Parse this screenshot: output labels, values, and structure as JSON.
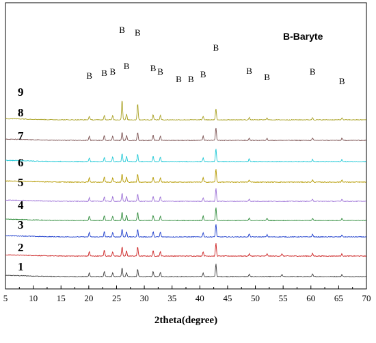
{
  "chart_data": {
    "type": "line",
    "xlabel": "2theta(degree)",
    "ylabel": "",
    "xlim": [
      5,
      70
    ],
    "x_ticks": [
      "5",
      "10",
      "15",
      "20",
      "25",
      "30",
      "35",
      "40",
      "45",
      "50",
      "55",
      "60",
      "65",
      "70"
    ],
    "grid": false,
    "legend_text": "B-Baryte",
    "peak_marker": "B",
    "peak_positions": [
      20.1,
      22.8,
      24.3,
      26.0,
      26.8,
      28.8,
      31.6,
      32.9,
      36.2,
      38.4,
      40.6,
      42.9,
      48.9,
      52.1,
      60.3,
      65.6
    ],
    "series": [
      {
        "name": "1",
        "color": "#404040",
        "values": [
          [
            20.1,
            0.1
          ],
          [
            22.8,
            0.14
          ],
          [
            24.3,
            0.1
          ],
          [
            26.0,
            0.25
          ],
          [
            26.8,
            0.12
          ],
          [
            28.8,
            0.2
          ],
          [
            31.6,
            0.14
          ],
          [
            32.9,
            0.12
          ],
          [
            40.6,
            0.1
          ],
          [
            42.9,
            0.35
          ],
          [
            48.9,
            0.06
          ],
          [
            54.8,
            0.06
          ],
          [
            60.3,
            0.07
          ],
          [
            65.6,
            0.06
          ]
        ]
      },
      {
        "name": "2",
        "color": "#cc2222",
        "values": [
          [
            20.1,
            0.12
          ],
          [
            22.8,
            0.16
          ],
          [
            24.3,
            0.12
          ],
          [
            26.0,
            0.25
          ],
          [
            26.8,
            0.14
          ],
          [
            28.8,
            0.25
          ],
          [
            31.6,
            0.14
          ],
          [
            32.9,
            0.12
          ],
          [
            40.6,
            0.12
          ],
          [
            42.9,
            0.35
          ],
          [
            48.9,
            0.06
          ],
          [
            52.1,
            0.06
          ],
          [
            54.8,
            0.06
          ],
          [
            60.3,
            0.07
          ],
          [
            65.6,
            0.06
          ]
        ]
      },
      {
        "name": "3",
        "color": "#1f3fcc",
        "values": [
          [
            20.1,
            0.12
          ],
          [
            22.8,
            0.14
          ],
          [
            24.3,
            0.12
          ],
          [
            26.0,
            0.22
          ],
          [
            26.8,
            0.14
          ],
          [
            28.8,
            0.2
          ],
          [
            31.6,
            0.14
          ],
          [
            32.9,
            0.13
          ],
          [
            40.6,
            0.12
          ],
          [
            42.9,
            0.35
          ],
          [
            48.9,
            0.08
          ],
          [
            52.1,
            0.06
          ],
          [
            60.3,
            0.07
          ],
          [
            65.6,
            0.06
          ]
        ]
      },
      {
        "name": "4",
        "color": "#2e8b3a",
        "values": [
          [
            20.1,
            0.12
          ],
          [
            22.8,
            0.14
          ],
          [
            24.3,
            0.12
          ],
          [
            26.0,
            0.22
          ],
          [
            26.8,
            0.14
          ],
          [
            28.8,
            0.22
          ],
          [
            31.6,
            0.14
          ],
          [
            32.9,
            0.12
          ],
          [
            40.6,
            0.12
          ],
          [
            42.9,
            0.35
          ],
          [
            48.9,
            0.06
          ],
          [
            52.1,
            0.06
          ],
          [
            60.3,
            0.06
          ],
          [
            65.6,
            0.06
          ]
        ]
      },
      {
        "name": "5",
        "color": "#9b6fd6",
        "values": [
          [
            20.1,
            0.1
          ],
          [
            22.8,
            0.12
          ],
          [
            24.3,
            0.12
          ],
          [
            26.0,
            0.22
          ],
          [
            26.8,
            0.14
          ],
          [
            28.8,
            0.2
          ],
          [
            31.6,
            0.14
          ],
          [
            32.9,
            0.12
          ],
          [
            40.6,
            0.1
          ],
          [
            42.9,
            0.35
          ],
          [
            48.9,
            0.06
          ],
          [
            60.3,
            0.06
          ],
          [
            65.6,
            0.06
          ]
        ]
      },
      {
        "name": "6",
        "color": "#b59a00",
        "values": [
          [
            20.1,
            0.12
          ],
          [
            22.8,
            0.14
          ],
          [
            24.3,
            0.12
          ],
          [
            26.0,
            0.22
          ],
          [
            26.8,
            0.14
          ],
          [
            28.8,
            0.22
          ],
          [
            31.6,
            0.14
          ],
          [
            32.9,
            0.12
          ],
          [
            40.6,
            0.12
          ],
          [
            42.9,
            0.35
          ],
          [
            48.9,
            0.06
          ],
          [
            60.3,
            0.06
          ],
          [
            65.6,
            0.06
          ]
        ]
      },
      {
        "name": "7",
        "color": "#1ec8d6",
        "values": [
          [
            20.1,
            0.1
          ],
          [
            22.8,
            0.12
          ],
          [
            24.3,
            0.12
          ],
          [
            26.0,
            0.22
          ],
          [
            26.8,
            0.14
          ],
          [
            28.8,
            0.2
          ],
          [
            31.6,
            0.14
          ],
          [
            32.9,
            0.12
          ],
          [
            40.6,
            0.1
          ],
          [
            42.9,
            0.35
          ],
          [
            48.9,
            0.08
          ],
          [
            60.3,
            0.06
          ],
          [
            65.6,
            0.06
          ]
        ]
      },
      {
        "name": "8",
        "color": "#7a5050",
        "values": [
          [
            20.1,
            0.12
          ],
          [
            22.8,
            0.14
          ],
          [
            24.3,
            0.12
          ],
          [
            26.0,
            0.22
          ],
          [
            26.8,
            0.14
          ],
          [
            28.8,
            0.22
          ],
          [
            31.6,
            0.14
          ],
          [
            32.9,
            0.12
          ],
          [
            40.6,
            0.12
          ],
          [
            42.9,
            0.35
          ],
          [
            48.9,
            0.06
          ],
          [
            52.1,
            0.06
          ],
          [
            60.3,
            0.06
          ],
          [
            65.6,
            0.06
          ]
        ]
      },
      {
        "name": "9",
        "color": "#a8a020",
        "values": [
          [
            20.1,
            0.1
          ],
          [
            22.8,
            0.12
          ],
          [
            24.3,
            0.12
          ],
          [
            26.0,
            0.55
          ],
          [
            26.8,
            0.16
          ],
          [
            28.8,
            0.45
          ],
          [
            31.6,
            0.14
          ],
          [
            32.9,
            0.12
          ],
          [
            40.6,
            0.1
          ],
          [
            42.9,
            0.3
          ],
          [
            48.9,
            0.06
          ],
          [
            52.1,
            0.06
          ],
          [
            60.3,
            0.06
          ],
          [
            65.6,
            0.06
          ]
        ]
      }
    ]
  }
}
